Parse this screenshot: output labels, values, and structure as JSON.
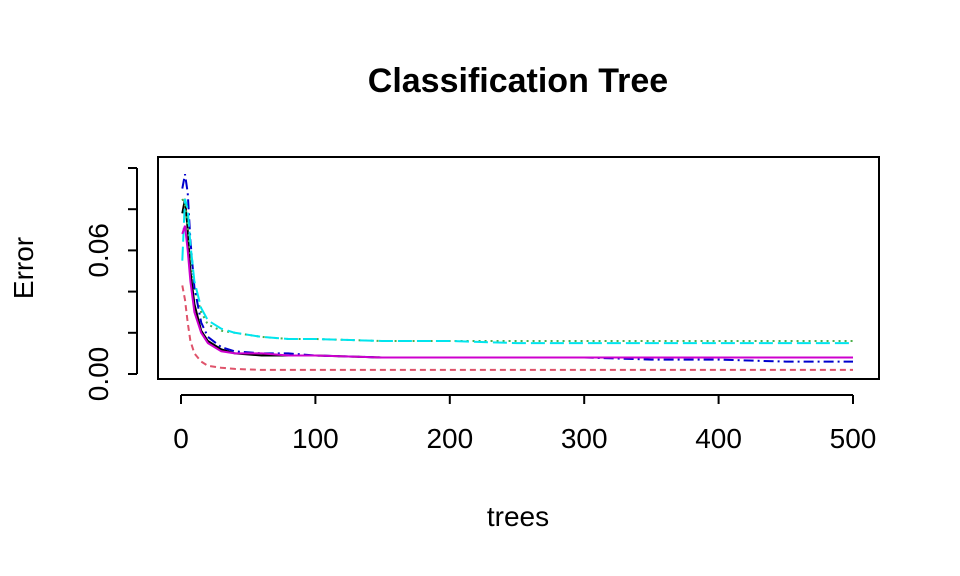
{
  "chart_data": {
    "type": "line",
    "title": "Classification Tree",
    "xlabel": "trees",
    "ylabel": "Error",
    "xlim": [
      0,
      500
    ],
    "ylim": [
      0,
      0.1
    ],
    "xticks": [
      0,
      100,
      200,
      300,
      400,
      500
    ],
    "xtick_labels": [
      "0",
      "100",
      "200",
      "300",
      "400",
      "500"
    ],
    "yticks": [
      0.0,
      0.02,
      0.04,
      0.06,
      0.08,
      0.1
    ],
    "ytick_labels": [
      "0.00",
      "",
      "",
      "0.06",
      "",
      ""
    ],
    "grid": false,
    "series": [
      {
        "color": "#000000",
        "dash": "solid",
        "x": [
          1,
          3,
          5,
          7,
          10,
          15,
          20,
          30,
          40,
          60,
          80,
          100,
          150,
          200,
          250,
          300,
          350,
          400,
          450,
          500
        ],
        "y": [
          0.078,
          0.085,
          0.07,
          0.05,
          0.034,
          0.021,
          0.016,
          0.012,
          0.01,
          0.009,
          0.009,
          0.009,
          0.008,
          0.008,
          0.008,
          0.008,
          0.008,
          0.008,
          0.008,
          0.008
        ]
      },
      {
        "color": "#DF536B",
        "dash": "6,4",
        "x": [
          1,
          3,
          5,
          7,
          10,
          15,
          20,
          30,
          40,
          60,
          80,
          100,
          150,
          200,
          250,
          300,
          350,
          400,
          450,
          500
        ],
        "y": [
          0.043,
          0.036,
          0.025,
          0.016,
          0.01,
          0.006,
          0.004,
          0.003,
          0.0025,
          0.002,
          0.002,
          0.002,
          0.002,
          0.002,
          0.002,
          0.002,
          0.002,
          0.002,
          0.002,
          0.002
        ]
      },
      {
        "color": "#4DAF4A",
        "dash": "2,4",
        "x": [
          1,
          3,
          5,
          7,
          10,
          15,
          20,
          30,
          40,
          60,
          80,
          100,
          150,
          200,
          250,
          300,
          350,
          400,
          450,
          500
        ],
        "y": [
          0.085,
          0.082,
          0.072,
          0.058,
          0.042,
          0.03,
          0.024,
          0.021,
          0.02,
          0.018,
          0.017,
          0.017,
          0.016,
          0.016,
          0.016,
          0.016,
          0.016,
          0.016,
          0.016,
          0.016
        ]
      },
      {
        "color": "#0000CD",
        "dash": "10,4,2,4",
        "x": [
          1,
          3,
          5,
          7,
          10,
          15,
          20,
          30,
          40,
          60,
          80,
          100,
          150,
          200,
          250,
          300,
          350,
          400,
          450,
          500
        ],
        "y": [
          0.09,
          0.097,
          0.088,
          0.065,
          0.042,
          0.025,
          0.018,
          0.013,
          0.011,
          0.01,
          0.01,
          0.009,
          0.008,
          0.008,
          0.008,
          0.008,
          0.007,
          0.007,
          0.006,
          0.006
        ]
      },
      {
        "color": "#00E5EE",
        "dash": "14,5",
        "x": [
          1,
          3,
          5,
          7,
          10,
          15,
          20,
          30,
          40,
          60,
          80,
          100,
          150,
          200,
          250,
          300,
          350,
          400,
          450,
          500
        ],
        "y": [
          0.055,
          0.085,
          0.08,
          0.063,
          0.045,
          0.032,
          0.026,
          0.022,
          0.02,
          0.018,
          0.017,
          0.017,
          0.016,
          0.016,
          0.015,
          0.015,
          0.015,
          0.015,
          0.015,
          0.015
        ]
      },
      {
        "color": "#CD00CD",
        "dash": "solid",
        "x": [
          1,
          3,
          5,
          7,
          10,
          15,
          20,
          30,
          40,
          60,
          80,
          100,
          150,
          200,
          250,
          300,
          350,
          400,
          450,
          500
        ],
        "y": [
          0.068,
          0.072,
          0.06,
          0.045,
          0.03,
          0.02,
          0.015,
          0.011,
          0.01,
          0.01,
          0.009,
          0.009,
          0.008,
          0.008,
          0.008,
          0.008,
          0.008,
          0.008,
          0.008,
          0.008
        ]
      }
    ]
  }
}
